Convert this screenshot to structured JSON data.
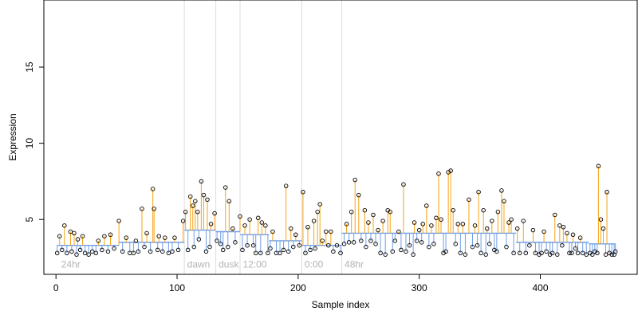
{
  "chart_data": {
    "type": "scatter",
    "title": "",
    "xlabel": "Sample index",
    "ylabel": "Expression",
    "xlim": [
      -10,
      480
    ],
    "ylim": [
      1.4,
      19.4
    ],
    "xticks": [
      "0",
      "100",
      "200",
      "300",
      "400"
    ],
    "xtick_values": [
      0,
      100,
      200,
      300,
      400
    ],
    "yticks": [
      "5",
      "10",
      "15"
    ],
    "ytick_values": [
      5,
      10,
      15
    ],
    "grid": false,
    "phase_boundaries": [
      106,
      132,
      152,
      203,
      236
    ],
    "phase_labels": [
      {
        "x": 3,
        "text": "24hr"
      },
      {
        "x": 107,
        "text": "dawn"
      },
      {
        "x": 133,
        "text": "dusk"
      },
      {
        "x": 153,
        "text": "12:00"
      },
      {
        "x": 204,
        "text": "0:00"
      },
      {
        "x": 237,
        "text": "48hr"
      }
    ],
    "baseline_segments": [
      {
        "x0": 1,
        "x1": 52,
        "y": 3.3
      },
      {
        "x0": 52,
        "x1": 106,
        "y": 3.5
      },
      {
        "x0": 106,
        "x1": 132,
        "y": 4.3
      },
      {
        "x0": 132,
        "x1": 152,
        "y": 4.2
      },
      {
        "x0": 152,
        "x1": 176,
        "y": 4.0
      },
      {
        "x0": 176,
        "x1": 203,
        "y": 3.6
      },
      {
        "x0": 203,
        "x1": 236,
        "y": 3.3
      },
      {
        "x0": 236,
        "x1": 300,
        "y": 4.1
      },
      {
        "x0": 300,
        "x1": 380,
        "y": 4.1
      },
      {
        "x0": 380,
        "x1": 440,
        "y": 3.5
      },
      {
        "x0": 440,
        "x1": 462,
        "y": 3.4
      }
    ],
    "high_points": [
      {
        "x": 3,
        "y": 3.9
      },
      {
        "x": 7,
        "y": 4.6
      },
      {
        "x": 12,
        "y": 4.2
      },
      {
        "x": 15,
        "y": 4.1
      },
      {
        "x": 18,
        "y": 3.7
      },
      {
        "x": 22,
        "y": 3.9
      },
      {
        "x": 35,
        "y": 3.6
      },
      {
        "x": 40,
        "y": 3.9
      },
      {
        "x": 45,
        "y": 4.0
      },
      {
        "x": 52,
        "y": 4.9
      },
      {
        "x": 58,
        "y": 3.8
      },
      {
        "x": 66,
        "y": 3.6
      },
      {
        "x": 71,
        "y": 5.7
      },
      {
        "x": 75,
        "y": 4.1
      },
      {
        "x": 80,
        "y": 7.0
      },
      {
        "x": 81,
        "y": 5.7
      },
      {
        "x": 85,
        "y": 3.9
      },
      {
        "x": 90,
        "y": 3.8
      },
      {
        "x": 98,
        "y": 3.8
      },
      {
        "x": 105,
        "y": 4.9
      },
      {
        "x": 107,
        "y": 5.5
      },
      {
        "x": 111,
        "y": 6.5
      },
      {
        "x": 113,
        "y": 5.9
      },
      {
        "x": 115,
        "y": 6.2
      },
      {
        "x": 117,
        "y": 5.5
      },
      {
        "x": 120,
        "y": 7.5
      },
      {
        "x": 122,
        "y": 6.6
      },
      {
        "x": 125,
        "y": 6.3
      },
      {
        "x": 128,
        "y": 4.7
      },
      {
        "x": 131,
        "y": 5.4
      },
      {
        "x": 140,
        "y": 7.1
      },
      {
        "x": 143,
        "y": 6.2
      },
      {
        "x": 146,
        "y": 4.4
      },
      {
        "x": 152,
        "y": 5.2
      },
      {
        "x": 156,
        "y": 4.6
      },
      {
        "x": 160,
        "y": 5.0
      },
      {
        "x": 167,
        "y": 5.1
      },
      {
        "x": 170,
        "y": 4.8
      },
      {
        "x": 173,
        "y": 4.6
      },
      {
        "x": 179,
        "y": 4.2
      },
      {
        "x": 190,
        "y": 7.2
      },
      {
        "x": 194,
        "y": 4.4
      },
      {
        "x": 198,
        "y": 4.0
      },
      {
        "x": 204,
        "y": 6.8
      },
      {
        "x": 208,
        "y": 4.5
      },
      {
        "x": 213,
        "y": 4.9
      },
      {
        "x": 216,
        "y": 5.5
      },
      {
        "x": 218,
        "y": 6.0
      },
      {
        "x": 223,
        "y": 4.2
      },
      {
        "x": 227,
        "y": 4.2
      },
      {
        "x": 240,
        "y": 4.7
      },
      {
        "x": 244,
        "y": 5.5
      },
      {
        "x": 247,
        "y": 7.6
      },
      {
        "x": 250,
        "y": 6.6
      },
      {
        "x": 255,
        "y": 5.6
      },
      {
        "x": 258,
        "y": 4.8
      },
      {
        "x": 262,
        "y": 5.3
      },
      {
        "x": 266,
        "y": 4.3
      },
      {
        "x": 270,
        "y": 4.9
      },
      {
        "x": 274,
        "y": 5.6
      },
      {
        "x": 276,
        "y": 5.5
      },
      {
        "x": 283,
        "y": 4.2
      },
      {
        "x": 287,
        "y": 7.3
      },
      {
        "x": 296,
        "y": 4.8
      },
      {
        "x": 300,
        "y": 4.3
      },
      {
        "x": 303,
        "y": 4.7
      },
      {
        "x": 306,
        "y": 5.9
      },
      {
        "x": 310,
        "y": 4.6
      },
      {
        "x": 314,
        "y": 5.1
      },
      {
        "x": 316,
        "y": 8.0
      },
      {
        "x": 318,
        "y": 5.0
      },
      {
        "x": 324,
        "y": 8.1
      },
      {
        "x": 326,
        "y": 8.2
      },
      {
        "x": 328,
        "y": 5.6
      },
      {
        "x": 332,
        "y": 4.7
      },
      {
        "x": 336,
        "y": 4.7
      },
      {
        "x": 341,
        "y": 6.3
      },
      {
        "x": 346,
        "y": 4.6
      },
      {
        "x": 349,
        "y": 6.8
      },
      {
        "x": 353,
        "y": 5.6
      },
      {
        "x": 356,
        "y": 4.4
      },
      {
        "x": 360,
        "y": 4.9
      },
      {
        "x": 365,
        "y": 5.5
      },
      {
        "x": 368,
        "y": 6.9
      },
      {
        "x": 370,
        "y": 6.2
      },
      {
        "x": 374,
        "y": 4.8
      },
      {
        "x": 376,
        "y": 5.0
      },
      {
        "x": 381,
        "y": 4.4
      },
      {
        "x": 386,
        "y": 4.9
      },
      {
        "x": 394,
        "y": 4.3
      },
      {
        "x": 403,
        "y": 4.2
      },
      {
        "x": 412,
        "y": 5.3
      },
      {
        "x": 416,
        "y": 4.6
      },
      {
        "x": 419,
        "y": 4.5
      },
      {
        "x": 422,
        "y": 4.1
      },
      {
        "x": 427,
        "y": 4.0
      },
      {
        "x": 433,
        "y": 3.8
      },
      {
        "x": 448,
        "y": 8.5
      },
      {
        "x": 450,
        "y": 5.0
      },
      {
        "x": 452,
        "y": 4.4
      },
      {
        "x": 455,
        "y": 6.8
      }
    ],
    "low_points": [
      {
        "x": 1,
        "y": 2.8
      },
      {
        "x": 5,
        "y": 3.0
      },
      {
        "x": 9,
        "y": 2.8
      },
      {
        "x": 13,
        "y": 2.9
      },
      {
        "x": 17,
        "y": 2.7
      },
      {
        "x": 20,
        "y": 3.0
      },
      {
        "x": 24,
        "y": 2.8
      },
      {
        "x": 27,
        "y": 2.7
      },
      {
        "x": 30,
        "y": 2.9
      },
      {
        "x": 33,
        "y": 2.8
      },
      {
        "x": 38,
        "y": 3.0
      },
      {
        "x": 43,
        "y": 2.9
      },
      {
        "x": 48,
        "y": 3.1
      },
      {
        "x": 55,
        "y": 2.9
      },
      {
        "x": 61,
        "y": 2.8
      },
      {
        "x": 64,
        "y": 2.8
      },
      {
        "x": 68,
        "y": 2.9
      },
      {
        "x": 73,
        "y": 3.2
      },
      {
        "x": 78,
        "y": 2.9
      },
      {
        "x": 84,
        "y": 3.0
      },
      {
        "x": 88,
        "y": 2.9
      },
      {
        "x": 93,
        "y": 2.8
      },
      {
        "x": 96,
        "y": 2.9
      },
      {
        "x": 101,
        "y": 3.0
      },
      {
        "x": 109,
        "y": 3.0
      },
      {
        "x": 114,
        "y": 3.2
      },
      {
        "x": 118,
        "y": 3.7
      },
      {
        "x": 124,
        "y": 2.9
      },
      {
        "x": 127,
        "y": 3.2
      },
      {
        "x": 133,
        "y": 3.6
      },
      {
        "x": 136,
        "y": 3.4
      },
      {
        "x": 138,
        "y": 3.0
      },
      {
        "x": 142,
        "y": 3.2
      },
      {
        "x": 148,
        "y": 3.5
      },
      {
        "x": 154,
        "y": 3.0
      },
      {
        "x": 158,
        "y": 3.3
      },
      {
        "x": 163,
        "y": 3.3
      },
      {
        "x": 165,
        "y": 2.8
      },
      {
        "x": 169,
        "y": 2.8
      },
      {
        "x": 175,
        "y": 2.8
      },
      {
        "x": 177,
        "y": 3.1
      },
      {
        "x": 182,
        "y": 2.8
      },
      {
        "x": 185,
        "y": 2.8
      },
      {
        "x": 188,
        "y": 3.0
      },
      {
        "x": 192,
        "y": 2.9
      },
      {
        "x": 196,
        "y": 3.2
      },
      {
        "x": 201,
        "y": 3.3
      },
      {
        "x": 206,
        "y": 2.8
      },
      {
        "x": 210,
        "y": 3.0
      },
      {
        "x": 214,
        "y": 3.1
      },
      {
        "x": 220,
        "y": 3.6
      },
      {
        "x": 225,
        "y": 3.3
      },
      {
        "x": 229,
        "y": 2.9
      },
      {
        "x": 232,
        "y": 3.3
      },
      {
        "x": 235,
        "y": 2.8
      },
      {
        "x": 238,
        "y": 3.4
      },
      {
        "x": 242,
        "y": 3.5
      },
      {
        "x": 246,
        "y": 3.5
      },
      {
        "x": 252,
        "y": 3.6
      },
      {
        "x": 256,
        "y": 3.2
      },
      {
        "x": 260,
        "y": 3.6
      },
      {
        "x": 264,
        "y": 3.4
      },
      {
        "x": 268,
        "y": 2.8
      },
      {
        "x": 272,
        "y": 2.7
      },
      {
        "x": 278,
        "y": 2.9
      },
      {
        "x": 280,
        "y": 3.6
      },
      {
        "x": 285,
        "y": 3.0
      },
      {
        "x": 289,
        "y": 2.9
      },
      {
        "x": 292,
        "y": 3.3
      },
      {
        "x": 295,
        "y": 2.7
      },
      {
        "x": 298,
        "y": 3.6
      },
      {
        "x": 302,
        "y": 3.5
      },
      {
        "x": 308,
        "y": 3.2
      },
      {
        "x": 312,
        "y": 3.4
      },
      {
        "x": 320,
        "y": 2.8
      },
      {
        "x": 322,
        "y": 2.9
      },
      {
        "x": 330,
        "y": 3.4
      },
      {
        "x": 334,
        "y": 2.8
      },
      {
        "x": 338,
        "y": 2.7
      },
      {
        "x": 344,
        "y": 3.2
      },
      {
        "x": 348,
        "y": 3.3
      },
      {
        "x": 351,
        "y": 2.8
      },
      {
        "x": 355,
        "y": 2.7
      },
      {
        "x": 358,
        "y": 3.4
      },
      {
        "x": 362,
        "y": 3.0
      },
      {
        "x": 364,
        "y": 2.9
      },
      {
        "x": 372,
        "y": 3.2
      },
      {
        "x": 378,
        "y": 2.8
      },
      {
        "x": 383,
        "y": 2.8
      },
      {
        "x": 388,
        "y": 2.8
      },
      {
        "x": 391,
        "y": 3.3
      },
      {
        "x": 396,
        "y": 2.8
      },
      {
        "x": 399,
        "y": 2.7
      },
      {
        "x": 401,
        "y": 2.8
      },
      {
        "x": 405,
        "y": 2.9
      },
      {
        "x": 408,
        "y": 2.7
      },
      {
        "x": 410,
        "y": 2.8
      },
      {
        "x": 414,
        "y": 2.7
      },
      {
        "x": 418,
        "y": 3.3
      },
      {
        "x": 424,
        "y": 2.8
      },
      {
        "x": 426,
        "y": 2.8
      },
      {
        "x": 429,
        "y": 3.1
      },
      {
        "x": 431,
        "y": 2.8
      },
      {
        "x": 435,
        "y": 2.8
      },
      {
        "x": 438,
        "y": 2.7
      },
      {
        "x": 441,
        "y": 2.8
      },
      {
        "x": 443,
        "y": 2.7
      },
      {
        "x": 445,
        "y": 2.9
      },
      {
        "x": 447,
        "y": 2.8
      },
      {
        "x": 454,
        "y": 2.7
      },
      {
        "x": 457,
        "y": 2.8
      },
      {
        "x": 459,
        "y": 2.7
      },
      {
        "x": 461,
        "y": 2.7
      },
      {
        "x": 462,
        "y": 2.9
      }
    ],
    "colors": {
      "above_baseline": "#f5a315",
      "below_baseline": "#6f9ee6",
      "baseline": "#6f9ee6",
      "phase_line": "#dddddd",
      "phase_label": "#b3b3b3",
      "point_stroke": "#000000"
    }
  }
}
